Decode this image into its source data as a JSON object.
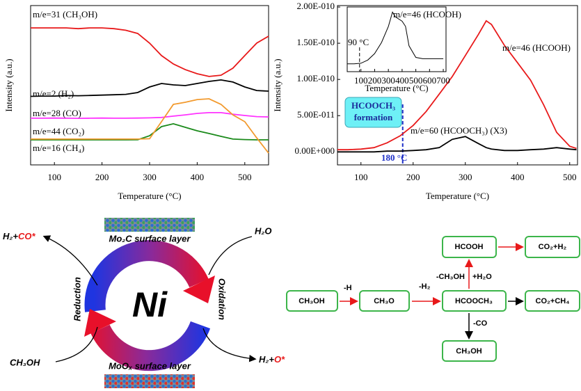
{
  "chart_data": [
    {
      "type": "line",
      "x": [
        50,
        75,
        100,
        125,
        150,
        175,
        200,
        225,
        250,
        275,
        300,
        325,
        350,
        375,
        400,
        425,
        450,
        475,
        500,
        525,
        550
      ],
      "series": [
        {
          "name": "m/e=31 (CH₃OH)",
          "color": "#e8191a",
          "values": [
            86,
            86,
            86,
            86,
            85.5,
            86,
            86,
            85.5,
            84.5,
            82.5,
            76.4,
            68.6,
            63.3,
            59.8,
            57.2,
            55.5,
            56.3,
            60.7,
            68.6,
            76.4,
            80.8
          ]
        },
        {
          "name": "m/e=2 (H₂)",
          "color": "#000000",
          "values": [
            43,
            43.2,
            43.2,
            43.5,
            43.4,
            43.6,
            43.8,
            44,
            44.3,
            45.4,
            48.9,
            51.1,
            50.2,
            49.8,
            51.1,
            52.4,
            53.3,
            52,
            48.9,
            46.7,
            46.3
          ]
        },
        {
          "name": "m/e=28 (CO)",
          "color": "#ff33ff",
          "values": [
            29.3,
            29.3,
            29.4,
            29.3,
            29.2,
            29.3,
            29.4,
            29.3,
            29.3,
            29.4,
            29.5,
            29.8,
            30.6,
            31.4,
            32.3,
            32.8,
            32.8,
            31.8,
            31,
            30.3,
            30.1
          ]
        },
        {
          "name": "m/e=44 (CO₂)",
          "color": "#1a8a1a",
          "values": [
            15.7,
            15.7,
            15.7,
            15.7,
            15.7,
            15.7,
            15.7,
            15.7,
            15.7,
            15.8,
            18.3,
            24,
            25.8,
            23.6,
            21.4,
            19.7,
            17.9,
            16.2,
            15.9,
            15.7,
            15.7
          ]
        },
        {
          "name": "m/e=16 (CH₄)",
          "color": "#f29a2e",
          "values": [
            16.2,
            16.2,
            16.2,
            16.2,
            16.2,
            16.2,
            16.2,
            16.2,
            16.2,
            16.2,
            16.4,
            27.1,
            38,
            39.3,
            41,
            41.5,
            38,
            31.4,
            27.1,
            17,
            7.4
          ]
        }
      ],
      "xlim": [
        50,
        550
      ],
      "xticks": [
        100,
        200,
        300,
        400,
        500
      ],
      "ylim": [
        0,
        100
      ],
      "xlabel": "Temperature (°C)",
      "ylabel": "Intensity (a.u.)"
    },
    {
      "type": "line",
      "x": [
        55,
        75,
        100,
        125,
        150,
        175,
        200,
        225,
        250,
        275,
        300,
        325,
        340,
        350,
        375,
        400,
        425,
        450,
        475,
        500,
        513
      ],
      "series": [
        {
          "name": "m/e=46 (HCOOH)",
          "color": "#e8191a",
          "values": [
            2.9e-12,
            2.9e-12,
            3.8e-12,
            5.8e-12,
            1.25e-11,
            2.21e-11,
            3.65e-11,
            5.58e-11,
            7.98e-11,
            1.04e-10,
            1.33e-10,
            1.62e-10,
            1.81e-10,
            1.76e-10,
            1.47e-10,
            1.23e-10,
            9.9e-11,
            6.5e-11,
            2.7e-11,
            7.7e-12,
            4.8e-12
          ]
        },
        {
          "name": "m/e=60 (HCOOCH₃) (X3)",
          "color": "#000000",
          "values": [
            0,
            0,
            0,
            0,
            1e-12,
            1e-12,
            1.9e-12,
            2.9e-12,
            5.8e-12,
            1.73e-11,
            2.12e-11,
            1.15e-11,
            5.8e-12,
            3.8e-12,
            1.9e-12,
            1.9e-12,
            2.9e-12,
            3.8e-12,
            5.8e-12,
            3.8e-12,
            2.9e-12
          ]
        }
      ],
      "xlim": [
        55,
        515
      ],
      "xticks": [
        100,
        200,
        300,
        400,
        500
      ],
      "ylim": [
        -1.8e-11,
        2.02e-10
      ],
      "yticks": [
        {
          "value": 0,
          "label": "0.00E+000"
        },
        {
          "value": 5e-11,
          "label": "5.00E-011"
        },
        {
          "value": 1e-10,
          "label": "1.00E-010"
        },
        {
          "value": 1.5e-10,
          "label": "1.50E-010"
        },
        {
          "value": 2e-10,
          "label": "2.00E-010"
        }
      ],
      "xlabel": "Temperature (°C)",
      "ylabel": "Intensity (a.u.)",
      "annotations": [
        {
          "x": 180,
          "label": "180 °C"
        }
      ],
      "callout": [
        "HCOOCH₃",
        "formation"
      ]
    },
    {
      "type": "line",
      "x": [
        0,
        50,
        100,
        150,
        200,
        250,
        300,
        330,
        350,
        400,
        425,
        450,
        500,
        550,
        600,
        650,
        700
      ],
      "series": [
        {
          "name": "m/e=46 (HCOOH)",
          "color": "#000000",
          "values": [
            12,
            12,
            13,
            18,
            28,
            45,
            70,
            92,
            85,
            78,
            70,
            40,
            22,
            20,
            20,
            20,
            20
          ]
        }
      ],
      "xlim": [
        0,
        720
      ],
      "xticks": [
        100,
        200,
        300,
        400,
        500,
        600,
        700
      ],
      "ylim": [
        0,
        100
      ],
      "xlabel": "Temperature (°C)",
      "annotations": [
        {
          "x": 90,
          "label": "90 °C"
        }
      ]
    }
  ],
  "cycle": {
    "center": "Ni",
    "top_layer": "Mo₂C surface layer",
    "bottom_layer": "MoOₓ surface layer",
    "left": "Reduction",
    "right": "Oxidation",
    "top_left": [
      "H₂+",
      "CO*"
    ],
    "top_right": "H₂O",
    "bottom_left": "CH₃OH",
    "bottom_right": [
      "H₂+",
      "O*"
    ]
  },
  "scheme": {
    "nodes": [
      "CH₃OH",
      "CH₃O",
      "HCOOCH₃",
      "HCOOH",
      "CO₂+H₂",
      "CO₂+CH₄",
      "CH₃OH"
    ],
    "edges": [
      "-H",
      "-H₂",
      "-CH₃OH",
      "+H₂O",
      "-CO"
    ]
  }
}
